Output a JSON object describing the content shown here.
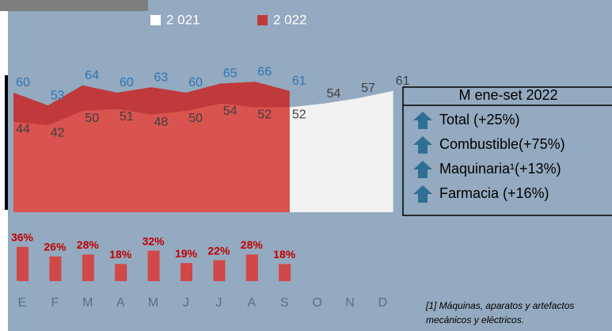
{
  "chart_data": {
    "type": "area",
    "categories": [
      "E",
      "F",
      "M",
      "A",
      "M",
      "J",
      "J",
      "A",
      "S",
      "O",
      "N",
      "D"
    ],
    "series": [
      {
        "name": "2 021",
        "color": "#f2f2f2",
        "values": [
          44,
          42,
          50,
          51,
          48,
          50,
          54,
          52,
          52,
          54,
          57,
          61
        ]
      },
      {
        "name": "2 022",
        "color": "#c0393b",
        "values": [
          60,
          53,
          64,
          60,
          63,
          60,
          65,
          66,
          61,
          null,
          null,
          null
        ]
      }
    ],
    "growth": {
      "color": "#d04848",
      "values": [
        36,
        26,
        28,
        18,
        32,
        19,
        22,
        28,
        18
      ],
      "value_labels": [
        "36%",
        "26%",
        "28%",
        "18%",
        "32%",
        "19%",
        "22%",
        "28%",
        "18%"
      ]
    },
    "box": {
      "title": "M ene-set 2022",
      "items": [
        "Total (+25%)",
        "Combustible(+75%)",
        "Maquinaria¹(+13%)",
        "Farmacia (+16%)"
      ]
    },
    "footnote": [
      "[1] Máquinas, aparatos y artefactos",
      "mecánicos y eléctricos."
    ]
  }
}
